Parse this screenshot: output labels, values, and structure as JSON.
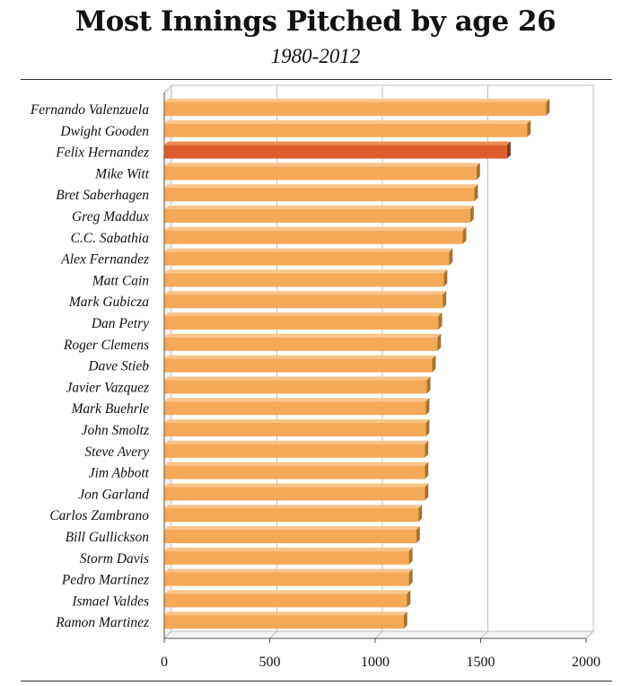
{
  "title": "Most Innings Pitched by age 26",
  "subtitle": "1980-2012",
  "colors": {
    "bar": "#F5A855",
    "bar_top": "#FAC488",
    "bar_side": "#B0701E",
    "highlight": "#DD5E2A",
    "highlight_top": "#EE8A55",
    "highlight_side": "#8E3210",
    "grid": "#BFBFBF",
    "axis": "#555555"
  },
  "chart_data": {
    "type": "bar",
    "orientation": "horizontal",
    "title": "Most Innings Pitched by age 26",
    "subtitle": "1980-2012",
    "xlim": [
      0,
      2000
    ],
    "xticks": [
      0,
      500,
      1000,
      1500,
      2000
    ],
    "grid": true,
    "highlight": "Felix Hernandez",
    "categories": [
      "Fernando Valenzuela",
      "Dwight Gooden",
      "Felix Hernandez",
      "Mike Witt",
      "Bret Saberhagen",
      "Greg Maddux",
      "C.C. Sabathia",
      "Alex Fernandez",
      "Matt Cain",
      "Mark Gubicza",
      "Dan Petry",
      "Roger Clemens",
      "Dave Stieb",
      "Javier Vazquez",
      "Mark Buehrle",
      "John Smoltz",
      "Steve Avery",
      "Jim Abbott",
      "Jon Garland",
      "Carlos Zambrano",
      "Bill Gullickson",
      "Storm Davis",
      "Pedro Martinez",
      "Ismael Valdes",
      "Ramon Martinez"
    ],
    "values": [
      1810,
      1720,
      1625,
      1480,
      1470,
      1450,
      1415,
      1350,
      1325,
      1320,
      1300,
      1295,
      1270,
      1245,
      1240,
      1240,
      1235,
      1235,
      1235,
      1205,
      1195,
      1160,
      1160,
      1150,
      1135
    ]
  }
}
